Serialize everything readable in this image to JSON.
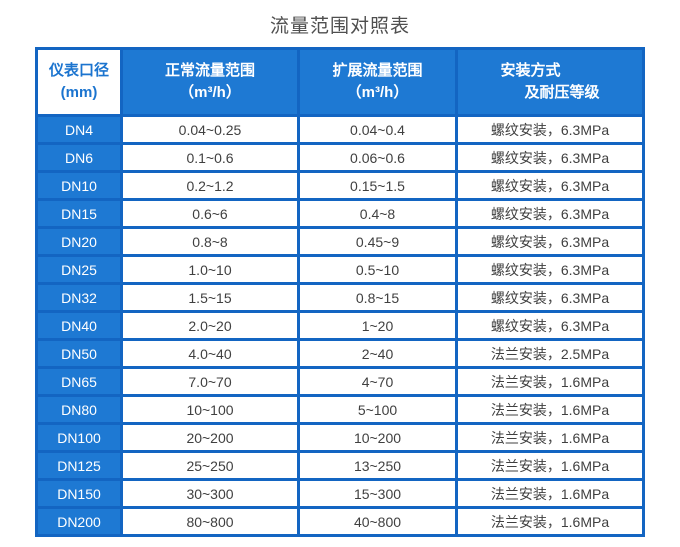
{
  "title": "流量范围对照表",
  "colors": {
    "cell_blue": "#1e79d3",
    "grid_blue": "#1365c2",
    "header_text": "#ffffff",
    "header_first_cell_text": "#1b74cf",
    "body_text": "#404040",
    "title_text": "#4f4f4f"
  },
  "table": {
    "headers": [
      {
        "line1": "仪表口径",
        "line2": "(mm)"
      },
      {
        "line1": "正常流量范围",
        "line2": "（m³/h）"
      },
      {
        "line1": "扩展流量范围",
        "line2": "（m³/h）"
      },
      {
        "line1": "安装方式",
        "line2": "及耐压等级"
      }
    ],
    "rows": [
      [
        "DN4",
        "0.04~0.25",
        "0.04~0.4",
        "螺纹安装，6.3MPa"
      ],
      [
        "DN6",
        "0.1~0.6",
        "0.06~0.6",
        "螺纹安装，6.3MPa"
      ],
      [
        "DN10",
        "0.2~1.2",
        "0.15~1.5",
        "螺纹安装，6.3MPa"
      ],
      [
        "DN15",
        "0.6~6",
        "0.4~8",
        "螺纹安装，6.3MPa"
      ],
      [
        "DN20",
        "0.8~8",
        "0.45~9",
        "螺纹安装，6.3MPa"
      ],
      [
        "DN25",
        "1.0~10",
        "0.5~10",
        "螺纹安装，6.3MPa"
      ],
      [
        "DN32",
        "1.5~15",
        "0.8~15",
        "螺纹安装，6.3MPa"
      ],
      [
        "DN40",
        "2.0~20",
        "1~20",
        "螺纹安装，6.3MPa"
      ],
      [
        "DN50",
        "4.0~40",
        "2~40",
        "法兰安装，2.5MPa"
      ],
      [
        "DN65",
        "7.0~70",
        "4~70",
        "法兰安装，1.6MPa"
      ],
      [
        "DN80",
        "10~100",
        "5~100",
        "法兰安装，1.6MPa"
      ],
      [
        "DN100",
        "20~200",
        "10~200",
        "法兰安装，1.6MPa"
      ],
      [
        "DN125",
        "25~250",
        "13~250",
        "法兰安装，1.6MPa"
      ],
      [
        "DN150",
        "30~300",
        "15~300",
        "法兰安装，1.6MPa"
      ],
      [
        "DN200",
        "80~800",
        "40~800",
        "法兰安装，1.6MPa"
      ]
    ]
  },
  "chart_data": {
    "type": "table",
    "title": "流量范围对照表",
    "columns": [
      "仪表口径(mm)",
      "正常流量范围（m³/h）",
      "扩展流量范围（m³/h）",
      "安装方式及耐压等级"
    ],
    "rows": [
      [
        "DN4",
        "0.04~0.25",
        "0.04~0.4",
        "螺纹安装，6.3MPa"
      ],
      [
        "DN6",
        "0.1~0.6",
        "0.06~0.6",
        "螺纹安装，6.3MPa"
      ],
      [
        "DN10",
        "0.2~1.2",
        "0.15~1.5",
        "螺纹安装，6.3MPa"
      ],
      [
        "DN15",
        "0.6~6",
        "0.4~8",
        "螺纹安装，6.3MPa"
      ],
      [
        "DN20",
        "0.8~8",
        "0.45~9",
        "螺纹安装，6.3MPa"
      ],
      [
        "DN25",
        "1.0~10",
        "0.5~10",
        "螺纹安装，6.3MPa"
      ],
      [
        "DN32",
        "1.5~15",
        "0.8~15",
        "螺纹安装，6.3MPa"
      ],
      [
        "DN40",
        "2.0~20",
        "1~20",
        "螺纹安装，6.3MPa"
      ],
      [
        "DN50",
        "4.0~40",
        "2~40",
        "法兰安装，2.5MPa"
      ],
      [
        "DN65",
        "7.0~70",
        "4~70",
        "法兰安装，1.6MPa"
      ],
      [
        "DN80",
        "10~100",
        "5~100",
        "法兰安装，1.6MPa"
      ],
      [
        "DN100",
        "20~200",
        "10~200",
        "法兰安装，1.6MPa"
      ],
      [
        "DN125",
        "25~250",
        "13~250",
        "法兰安装，1.6MPa"
      ],
      [
        "DN150",
        "30~300",
        "15~300",
        "法兰安装，1.6MPa"
      ],
      [
        "DN200",
        "80~800",
        "40~800",
        "法兰安装，1.6MPa"
      ]
    ]
  }
}
